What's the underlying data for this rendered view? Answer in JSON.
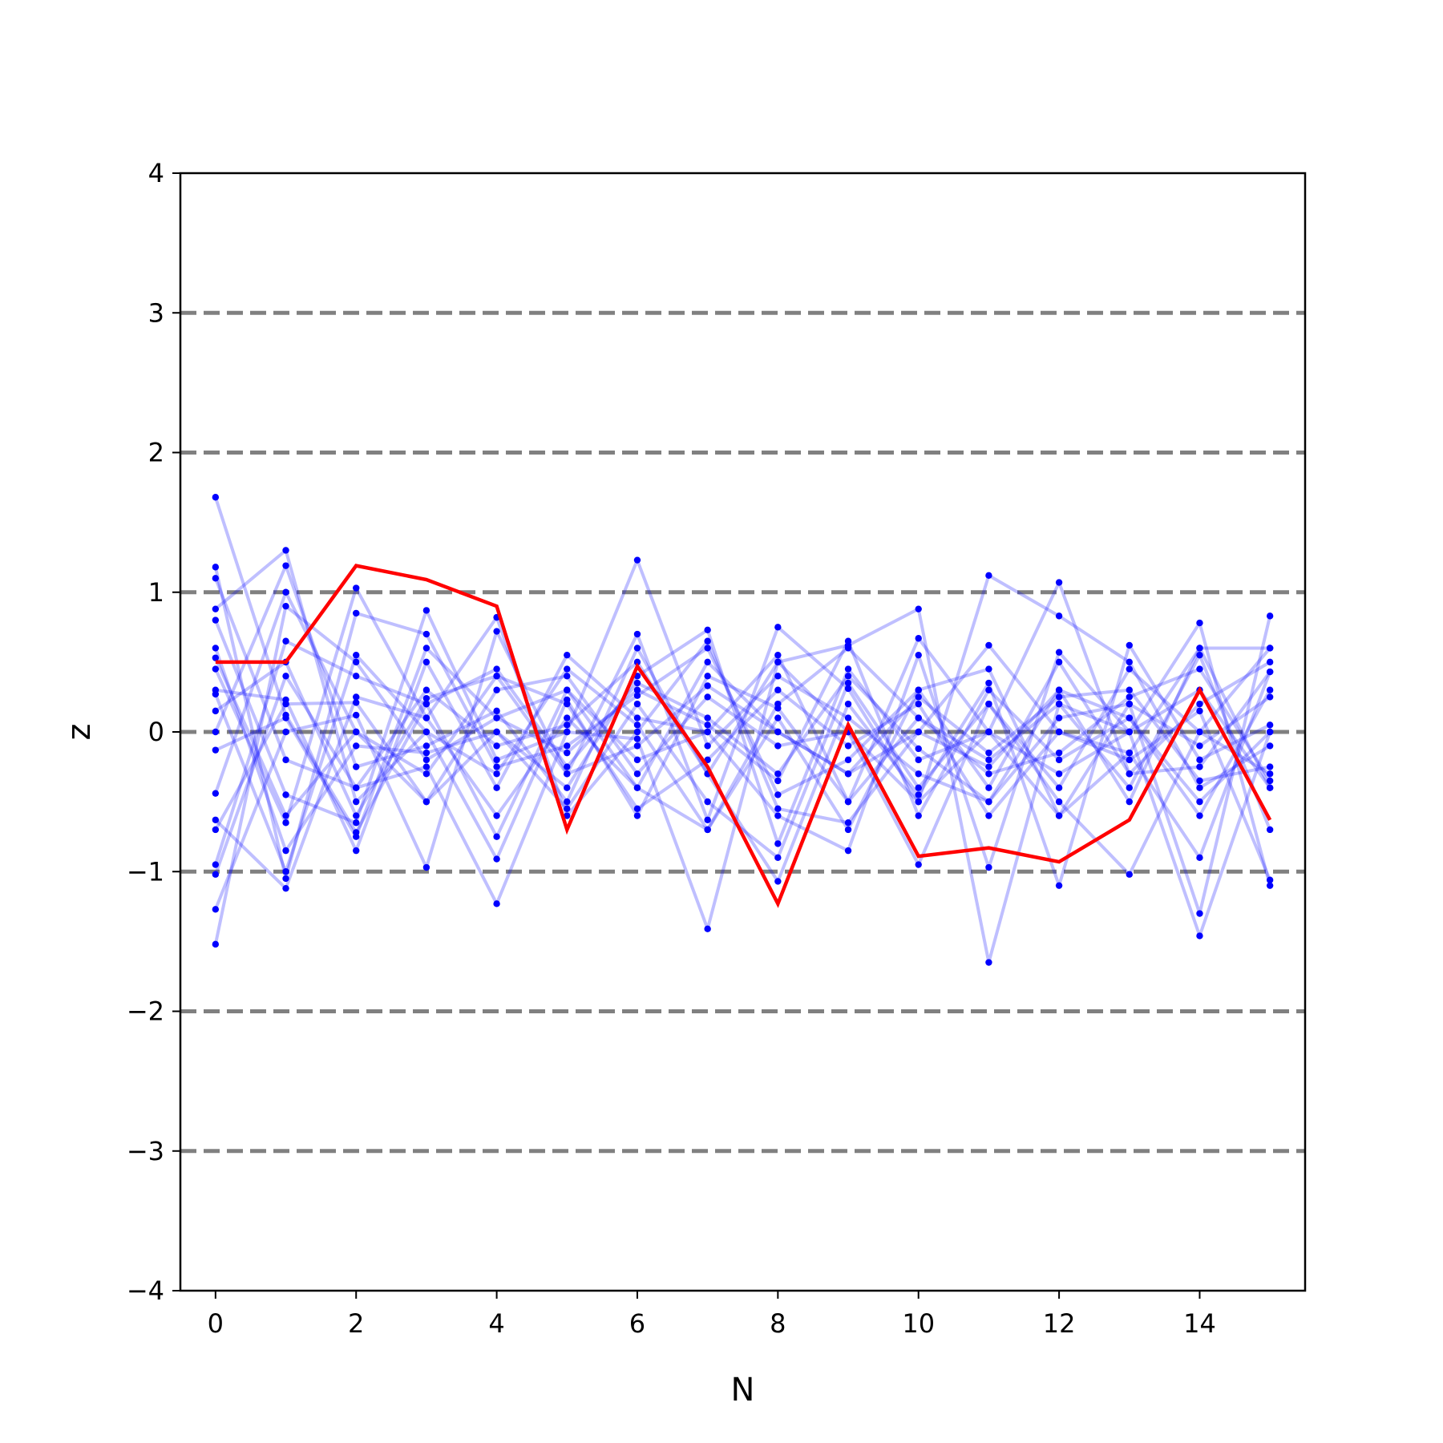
{
  "chart_data": {
    "type": "line",
    "xlabel": "N",
    "ylabel": "z",
    "xlim": [
      -0.5,
      15.5
    ],
    "ylim": [
      -4,
      4
    ],
    "x_ticks": [
      "0",
      "2",
      "4",
      "6",
      "8",
      "10",
      "12",
      "14"
    ],
    "y_ticks": [
      "−4",
      "−3",
      "−2",
      "−1",
      "0",
      "1",
      "2",
      "3",
      "4"
    ],
    "reference_lines": [
      -3,
      -2,
      -1,
      0,
      1,
      2,
      3
    ],
    "grid": false,
    "x": [
      0,
      1,
      2,
      3,
      4,
      5,
      6,
      7,
      8,
      9,
      10,
      11,
      12,
      13,
      14,
      15
    ],
    "colors": {
      "highlight": "#ff0000",
      "samples": "#0000ff",
      "reference": "#808080",
      "axes": "#000000"
    },
    "highlight_series": {
      "values": [
        0.5,
        0.5,
        1.19,
        1.09,
        0.9,
        -0.7,
        0.47,
        -0.25,
        -1.23,
        0.05,
        -0.89,
        -0.83,
        -0.93,
        -0.63,
        0.3,
        -0.63
      ]
    },
    "sample_series": [
      {
        "values": [
          1.68,
          0.12,
          -0.72,
          0.2,
          0.45,
          -0.25,
          0.35,
          0.1,
          -0.3,
          0.4,
          -0.12,
          -0.5,
          0.3,
          0.1,
          -0.6,
          0.3
        ]
      },
      {
        "values": [
          -1.52,
          0.9,
          0.5,
          -0.2,
          0.1,
          0.3,
          -0.4,
          -0.7,
          0.2,
          0.6,
          0.1,
          -0.3,
          -0.15,
          0.25,
          0.45,
          -0.35
        ]
      },
      {
        "values": [
          1.18,
          -1.05,
          0.85,
          0.7,
          -0.25,
          -0.1,
          0.26,
          0.6,
          -0.45,
          -0.2,
          0.3,
          0.45,
          -0.6,
          -0.15,
          0.6,
          0.6
        ]
      },
      {
        "values": [
          0.88,
          1.3,
          -0.5,
          0.0,
          -0.91,
          0.23,
          -0.6,
          0.4,
          0.17,
          -0.5,
          0.67,
          0.0,
          1.07,
          -0.3,
          -0.25,
          0.43
        ]
      },
      {
        "values": [
          -1.27,
          0.0,
          0.12,
          -0.97,
          0.72,
          -0.3,
          0.7,
          -0.63,
          0.75,
          0.31,
          -0.5,
          1.12,
          0.83,
          0.5,
          -0.4,
          -0.1
        ]
      },
      {
        "values": [
          0.8,
          -0.45,
          -0.65,
          0.87,
          -0.2,
          0.0,
          -0.05,
          -1.41,
          0.5,
          0.62,
          0.88,
          -1.65,
          0.2,
          0.0,
          0.78,
          -1.1
        ]
      },
      {
        "values": [
          0.3,
          0.23,
          -0.85,
          0.5,
          -0.4,
          0.55,
          0.1,
          0.0,
          -0.6,
          -0.85,
          0.55,
          -0.97,
          0.57,
          0.0,
          -1.46,
          0.0
        ]
      },
      {
        "values": [
          -0.44,
          1.0,
          0.0,
          -0.5,
          0.3,
          0.4,
          -0.3,
          0.25,
          -0.1,
          0.0,
          -0.95,
          0.2,
          -0.5,
          -1.02,
          0.0,
          0.6
        ]
      },
      {
        "values": [
          0.45,
          -0.65,
          1.03,
          0.1,
          -0.6,
          0.1,
          -0.4,
          0.5,
          0.0,
          -0.3,
          0.25,
          -0.15,
          0.25,
          0.3,
          -0.35,
          -0.25
        ]
      },
      {
        "values": [
          0.0,
          1.19,
          -0.25,
          -0.1,
          0.15,
          -0.5,
          0.6,
          -0.3,
          -1.07,
          0.2,
          -0.45,
          0.35,
          -1.1,
          0.62,
          -0.2,
          0.05
        ]
      },
      {
        "values": [
          -0.63,
          -1.12,
          0.25,
          0.1,
          0.82,
          -0.6,
          0.0,
          0.65,
          -0.55,
          -0.65,
          0.0,
          0.62,
          0.0,
          -0.2,
          0.15,
          -1.06
        ]
      },
      {
        "values": [
          1.1,
          -0.2,
          -0.4,
          -0.25,
          -1.23,
          0.0,
          1.23,
          -0.1,
          0.4,
          0.1,
          -0.3,
          -0.5,
          0.1,
          0.2,
          -1.3,
          0.83
        ]
      },
      {
        "values": [
          -0.95,
          0.65,
          0.4,
          0.2,
          -0.75,
          0.3,
          -0.2,
          0.0,
          0.55,
          -0.5,
          0.1,
          -0.2,
          0.2,
          -0.4,
          0.55,
          -0.7
        ]
      },
      {
        "values": [
          0.6,
          -0.85,
          -0.1,
          -0.15,
          0.0,
          -0.4,
          0.4,
          0.73,
          -0.8,
          0.45,
          -0.2,
          0.0,
          -0.3,
          0.0,
          0.3,
          -0.4
        ]
      },
      {
        "values": [
          0.15,
          0.5,
          -0.6,
          0.24,
          0.4,
          0.2,
          -0.55,
          -0.2,
          0.3,
          -0.1,
          0.2,
          -0.6,
          0.0,
          -0.15,
          -0.9,
          0.43
        ]
      },
      {
        "values": [
          -0.7,
          0.2,
          0.21,
          -0.5,
          0.0,
          -0.55,
          0.2,
          -0.5,
          -0.9,
          0.35,
          -0.4,
          0.2,
          -0.4,
          0.45,
          0.0,
          -0.3
        ]
      },
      {
        "values": [
          0.27,
          -1.0,
          0.55,
          0.0,
          -0.3,
          0.45,
          0.05,
          -0.7,
          0.1,
          -0.7,
          0.3,
          -0.4,
          0.5,
          -0.3,
          0.2,
          0.5
        ]
      },
      {
        "values": [
          -0.13,
          0.1,
          -0.75,
          0.6,
          0.1,
          -0.15,
          0.3,
          0.05,
          -0.35,
          0.65,
          -0.6,
          0.3,
          -0.2,
          0.1,
          -0.5,
          0.0
        ]
      },
      {
        "values": [
          0.53,
          -0.6,
          0.0,
          -0.3,
          0.4,
          -0.3,
          -0.1,
          0.33,
          0.0,
          -0.3,
          0.0,
          -0.25,
          0.3,
          -0.5,
          0.6,
          -0.4
        ]
      },
      {
        "values": [
          -1.02,
          0.4,
          -0.4,
          0.3,
          -0.1,
          0.05,
          0.5,
          -0.3,
          0.5,
          0.0,
          -0.5,
          0.0,
          -0.6,
          0.2,
          -0.1,
          0.25
        ]
      }
    ]
  }
}
